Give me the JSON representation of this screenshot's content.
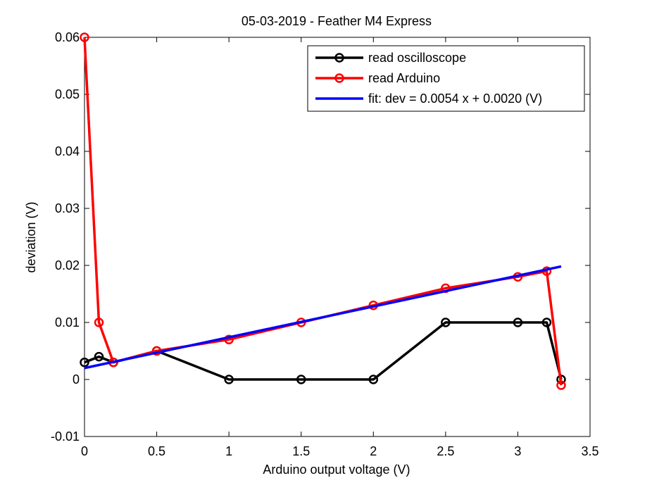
{
  "chart_data": {
    "type": "line",
    "title": "05-03-2019 - Feather M4 Express",
    "xlabel": "Arduino output voltage (V)",
    "ylabel": "deviation (V)",
    "xlim": [
      0,
      3.5
    ],
    "ylim": [
      -0.01,
      0.06
    ],
    "xticks": [
      0,
      0.5,
      1,
      1.5,
      2,
      2.5,
      3,
      3.5
    ],
    "xtick_labels": [
      "0",
      "0.5",
      "1",
      "1.5",
      "2",
      "2.5",
      "3",
      "3.5"
    ],
    "yticks": [
      -0.01,
      0,
      0.01,
      0.02,
      0.03,
      0.04,
      0.05,
      0.06
    ],
    "ytick_labels": [
      "-0.01",
      "0",
      "0.01",
      "0.02",
      "0.03",
      "0.04",
      "0.05",
      "0.06"
    ],
    "grid": false,
    "legend_position": "top-right",
    "series": [
      {
        "name": "read oscilloscope",
        "color": "#000000",
        "marker": "circle",
        "x": [
          0,
          0.1,
          0.2,
          0.5,
          1,
          1.5,
          2,
          2.5,
          3,
          3.2,
          3.3
        ],
        "y": [
          0.003,
          0.004,
          0.003,
          0.005,
          0,
          0,
          0,
          0.01,
          0.01,
          0.01,
          0
        ]
      },
      {
        "name": "read Arduino",
        "color": "#ff0000",
        "marker": "circle",
        "x": [
          0,
          0.1,
          0.2,
          0.5,
          1,
          1.5,
          2,
          2.5,
          3,
          3.2,
          3.3
        ],
        "y": [
          0.06,
          0.01,
          0.003,
          0.005,
          0.007,
          0.01,
          0.013,
          0.016,
          0.018,
          0.019,
          -0.001
        ]
      },
      {
        "name": "fit: dev = 0.0054 x + 0.0020 (V)",
        "color": "#0000ff",
        "marker": "none",
        "x": [
          0,
          3.3
        ],
        "y": [
          0.002,
          0.01982
        ]
      }
    ]
  }
}
